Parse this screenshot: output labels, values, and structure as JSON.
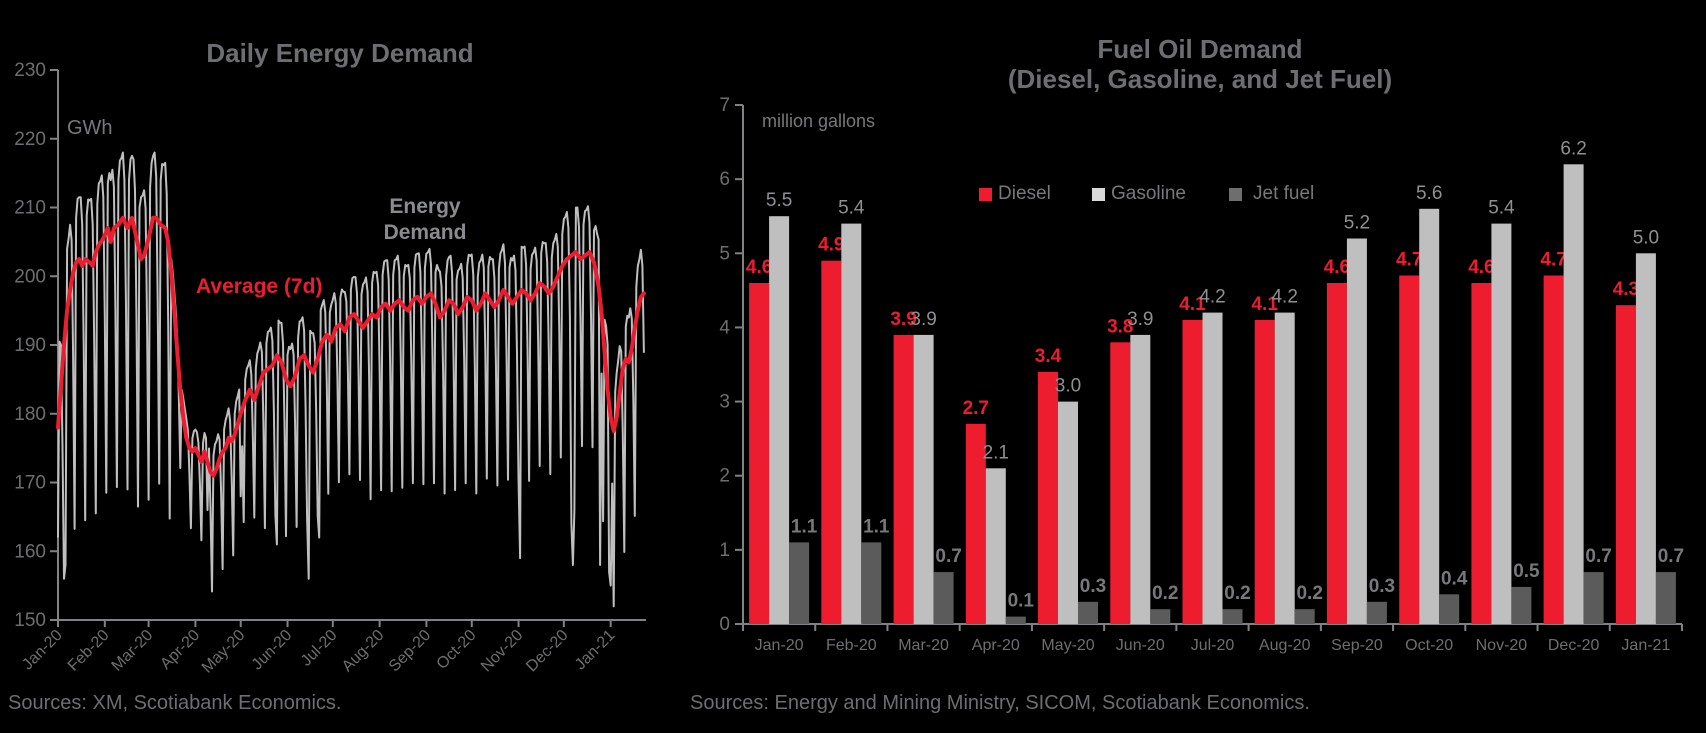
{
  "footer": {
    "left": "Sources: XM, Scotiabank Economics.",
    "right": "Sources: Energy and Mining Ministry, SICOM, Scotiabank Economics."
  },
  "colors": {
    "background": "#000000",
    "title": "#6d6e71",
    "axis": "#808285",
    "tick_label": "#6d6e71",
    "category_label": "#6d6e71",
    "source_text": "#6d6e71",
    "diesel": "#ed1c2e",
    "gasoline_bar": "#bfbfbf",
    "jet_bar": "#5b5b5b",
    "gasoline_swatch": "#d9d9d9",
    "jet_swatch": "#6e6e6e",
    "diesel_label": "#ed1c2e",
    "gasoline_label": "#8f9093",
    "jet_label": "#77787b",
    "daily_line": "#bfbfbf",
    "avg_line": "#ed1c2e",
    "annotation_gray": "#8a8b8e",
    "unit_label": "#77787b"
  },
  "chart_data": [
    {
      "type": "line",
      "title": "Daily Energy Demand",
      "ylabel": "GWh",
      "ylim": [
        150,
        230
      ],
      "ytick_step": 10,
      "x_tick_labels": [
        "Jan-20",
        "Feb-20",
        "Mar-20",
        "Apr-20",
        "May-20",
        "Jun-20",
        "Jul-20",
        "Aug-20",
        "Sep-20",
        "Oct-20",
        "Nov-20",
        "Dec-20",
        "Jan-21"
      ],
      "x_tick_days": [
        0,
        31,
        60,
        91,
        121,
        152,
        182,
        213,
        244,
        274,
        305,
        335,
        366
      ],
      "annotations": {
        "daily_label_line1": "Energy",
        "daily_label_line2": "Demand",
        "avg_label": "Average (7d)"
      },
      "series": [
        {
          "name": "Energy Demand",
          "color": "#bfbfbf"
        },
        {
          "name": "Average (7d)",
          "color": "#ed1c2e"
        }
      ],
      "days_total": 388,
      "avg7_waypoints": [
        [
          0,
          178
        ],
        [
          2,
          184
        ],
        [
          4,
          190
        ],
        [
          6,
          195
        ],
        [
          8,
          198
        ],
        [
          10,
          200.5
        ],
        [
          12,
          202
        ],
        [
          14,
          202.5
        ],
        [
          16,
          201.5
        ],
        [
          18,
          202.5
        ],
        [
          21,
          202
        ],
        [
          23,
          201.5
        ],
        [
          25,
          203.5
        ],
        [
          27,
          204.5
        ],
        [
          30,
          205.5
        ],
        [
          33,
          207
        ],
        [
          35,
          205
        ],
        [
          37,
          207
        ],
        [
          40,
          207.5
        ],
        [
          43,
          208.5
        ],
        [
          46,
          207
        ],
        [
          49,
          208.5
        ],
        [
          52,
          205.5
        ],
        [
          55,
          202.5
        ],
        [
          57,
          203
        ],
        [
          60,
          205.5
        ],
        [
          63,
          208.5
        ],
        [
          65,
          208.5
        ],
        [
          68,
          207.5
        ],
        [
          71,
          207
        ],
        [
          73,
          205
        ],
        [
          75,
          200.5
        ],
        [
          77,
          195
        ],
        [
          79,
          189
        ],
        [
          81,
          183.5
        ],
        [
          83,
          179.5
        ],
        [
          85,
          176.5
        ],
        [
          87,
          175
        ],
        [
          89,
          174.5
        ],
        [
          91,
          175
        ],
        [
          93,
          174
        ],
        [
          95,
          173
        ],
        [
          97,
          174.5
        ],
        [
          99,
          173
        ],
        [
          101,
          171.5
        ],
        [
          103,
          171
        ],
        [
          105,
          172
        ],
        [
          107,
          173.5
        ],
        [
          109,
          174.5
        ],
        [
          111,
          175
        ],
        [
          113,
          176.5
        ],
        [
          115,
          176
        ],
        [
          117,
          177
        ],
        [
          119,
          178.5
        ],
        [
          121,
          180
        ],
        [
          124,
          182
        ],
        [
          127,
          183.5
        ],
        [
          130,
          182
        ],
        [
          133,
          184
        ],
        [
          136,
          186
        ],
        [
          139,
          186.5
        ],
        [
          142,
          187
        ],
        [
          145,
          188.5
        ],
        [
          148,
          187.5
        ],
        [
          151,
          185
        ],
        [
          154,
          184
        ],
        [
          157,
          185.5
        ],
        [
          160,
          188
        ],
        [
          163,
          188.5
        ],
        [
          166,
          187
        ],
        [
          169,
          186
        ],
        [
          172,
          188
        ],
        [
          175,
          190.5
        ],
        [
          178,
          191.5
        ],
        [
          181,
          190.5
        ],
        [
          184,
          192.5
        ],
        [
          187,
          193
        ],
        [
          190,
          192
        ],
        [
          193,
          194
        ],
        [
          196,
          194.5
        ],
        [
          199,
          193.5
        ],
        [
          202,
          192.5
        ],
        [
          205,
          193.5
        ],
        [
          208,
          194.5
        ],
        [
          211,
          194
        ],
        [
          214,
          195.5
        ],
        [
          217,
          196
        ],
        [
          220,
          195
        ],
        [
          223,
          196
        ],
        [
          226,
          196.5
        ],
        [
          229,
          195.5
        ],
        [
          232,
          195
        ],
        [
          235,
          196.5
        ],
        [
          238,
          197
        ],
        [
          241,
          196
        ],
        [
          244,
          197
        ],
        [
          247,
          197.5
        ],
        [
          250,
          196
        ],
        [
          253,
          194
        ],
        [
          256,
          195
        ],
        [
          259,
          196.5
        ],
        [
          262,
          196
        ],
        [
          265,
          194.5
        ],
        [
          268,
          195.5
        ],
        [
          271,
          197
        ],
        [
          274,
          196.5
        ],
        [
          277,
          195
        ],
        [
          280,
          196
        ],
        [
          283,
          197.5
        ],
        [
          286,
          196.5
        ],
        [
          289,
          195.5
        ],
        [
          292,
          196.5
        ],
        [
          295,
          198
        ],
        [
          298,
          197
        ],
        [
          301,
          196
        ],
        [
          304,
          197
        ],
        [
          307,
          198
        ],
        [
          310,
          197.5
        ],
        [
          313,
          196.5
        ],
        [
          316,
          197.5
        ],
        [
          319,
          199
        ],
        [
          322,
          198.5
        ],
        [
          325,
          197.5
        ],
        [
          328,
          198.5
        ],
        [
          331,
          200
        ],
        [
          334,
          201.5
        ],
        [
          337,
          202.5
        ],
        [
          340,
          203
        ],
        [
          343,
          203.5
        ],
        [
          346,
          202.5
        ],
        [
          349,
          203
        ],
        [
          352,
          203.5
        ],
        [
          355,
          202
        ],
        [
          358,
          198.5
        ],
        [
          360,
          194.5
        ],
        [
          362,
          189
        ],
        [
          364,
          183.5
        ],
        [
          366,
          179.5
        ],
        [
          368,
          177.5
        ],
        [
          370,
          179.5
        ],
        [
          372,
          183
        ],
        [
          374,
          186.5
        ],
        [
          376,
          188
        ],
        [
          378,
          187.5
        ],
        [
          380,
          189.5
        ],
        [
          382,
          192.5
        ],
        [
          384,
          195
        ],
        [
          386,
          197
        ],
        [
          388,
          197.5
        ]
      ],
      "weekly_pattern": [
        9,
        9.5,
        6,
        -12,
        -38,
        6.5,
        9
      ],
      "weekly_pattern_start_dow": "Wed",
      "amplitude_segments": [
        [
          0,
          74,
          1.0
        ],
        [
          75,
          99,
          0.3
        ],
        [
          100,
          130,
          0.45
        ],
        [
          131,
          200,
          0.6
        ],
        [
          201,
          330,
          0.7
        ],
        [
          331,
          390,
          0.72
        ]
      ],
      "daily_overrides": {
        "0": 162,
        "4": 156,
        "5": 158,
        "99": 166,
        "121": 168,
        "145": 161,
        "166": 156,
        "173": 162,
        "306": 159,
        "340": 164,
        "341": 158,
        "342": 166,
        "359": 158,
        "365": 157,
        "366": 155
      }
    },
    {
      "type": "bar",
      "title_line1": "Fuel Oil Demand",
      "title_line2": "(Diesel, Gasoline, and Jet Fuel)",
      "ylabel": "million gallons",
      "ylim": [
        0,
        7
      ],
      "ytick_step": 1,
      "categories": [
        "Jan-20",
        "Feb-20",
        "Mar-20",
        "Apr-20",
        "May-20",
        "Jun-20",
        "Jul-20",
        "Aug-20",
        "Sep-20",
        "Oct-20",
        "Nov-20",
        "Dec-20",
        "Jan-21"
      ],
      "series": [
        {
          "name": "Diesel",
          "values": [
            4.6,
            4.9,
            3.9,
            2.7,
            3.4,
            3.8,
            4.1,
            4.1,
            4.6,
            4.7,
            4.6,
            4.7,
            4.3
          ]
        },
        {
          "name": "Gasoline",
          "values": [
            5.5,
            5.4,
            3.9,
            2.1,
            3.0,
            3.9,
            4.2,
            4.2,
            5.2,
            5.6,
            5.4,
            6.2,
            5.0
          ]
        },
        {
          "name": "Jet fuel",
          "values": [
            1.1,
            1.1,
            0.7,
            0.1,
            0.3,
            0.2,
            0.2,
            0.2,
            0.3,
            0.4,
            0.5,
            0.7,
            0.7
          ]
        }
      ],
      "legend_position": "top-center"
    }
  ]
}
